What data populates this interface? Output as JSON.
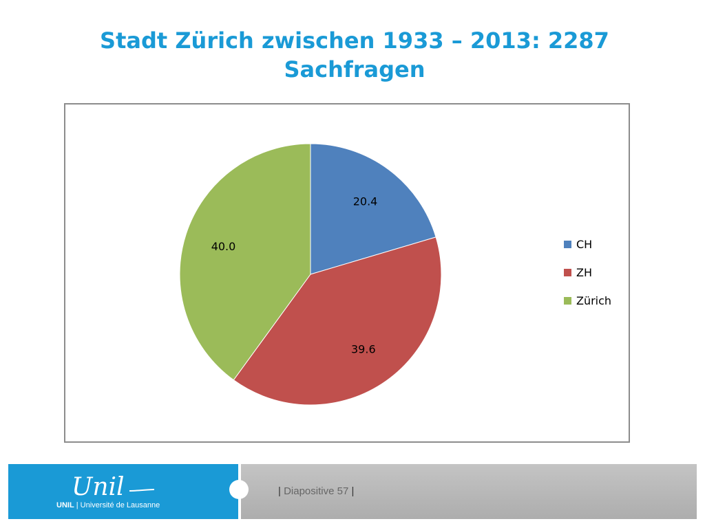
{
  "slide": {
    "title_line1": "Stadt Zürich zwischen 1933 – 2013: 2287",
    "title_line2": "Sachfragen"
  },
  "chart_data": {
    "type": "pie",
    "categories": [
      "CH",
      "ZH",
      "Zürich"
    ],
    "values": [
      20.4,
      39.6,
      40.0
    ],
    "data_labels": [
      "20.4",
      "39.6",
      "40.0"
    ],
    "colors": [
      "#4f81bd",
      "#c0504d",
      "#9bbb59"
    ],
    "title": "",
    "legend_position": "right",
    "start_angle": "top, clockwise"
  },
  "footer": {
    "logo_text": "Unil",
    "institution_short": "UNIL",
    "institution_separator": "|",
    "institution_name": "Université de Lausanne",
    "slide_bar_left": "|",
    "slide_label": "Diapositive 57",
    "slide_bar_right": "|",
    "colors": {
      "brand_blue": "#1a9ad6",
      "footer_gray": "#b3b3b3"
    }
  }
}
